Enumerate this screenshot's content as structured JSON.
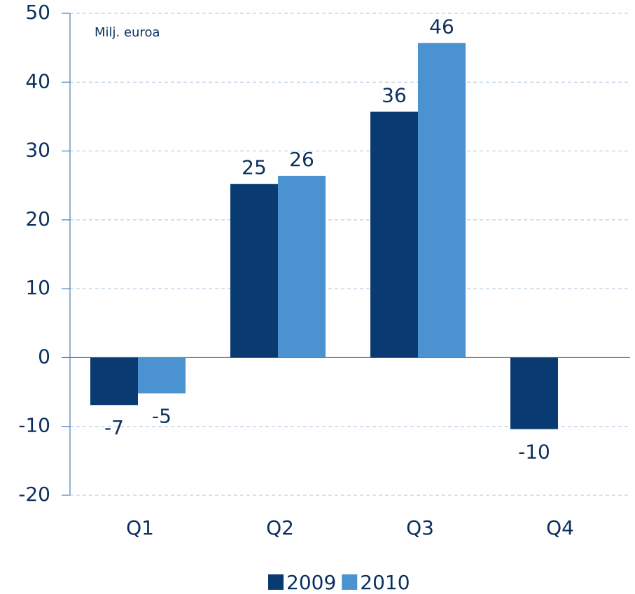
{
  "chart_data": {
    "type": "bar",
    "annotation": "Milj. euroa",
    "categories": [
      "Q1",
      "Q2",
      "Q3",
      "Q4"
    ],
    "series": [
      {
        "name": "2009",
        "color": "#0a3a72",
        "values": [
          -6.9,
          25.2,
          35.7,
          -10.4
        ],
        "value_labels": [
          "-7",
          "25",
          "36",
          "-10"
        ]
      },
      {
        "name": "2010",
        "color": "#4a93d0",
        "values": [
          -5.2,
          26.4,
          45.7,
          null
        ],
        "value_labels": [
          "-5",
          "26",
          "46",
          null
        ]
      }
    ],
    "ylim": [
      -20,
      50
    ],
    "yticks": [
      -20,
      -10,
      0,
      10,
      20,
      30,
      40,
      50
    ],
    "grid": true,
    "legend": "bottom"
  }
}
